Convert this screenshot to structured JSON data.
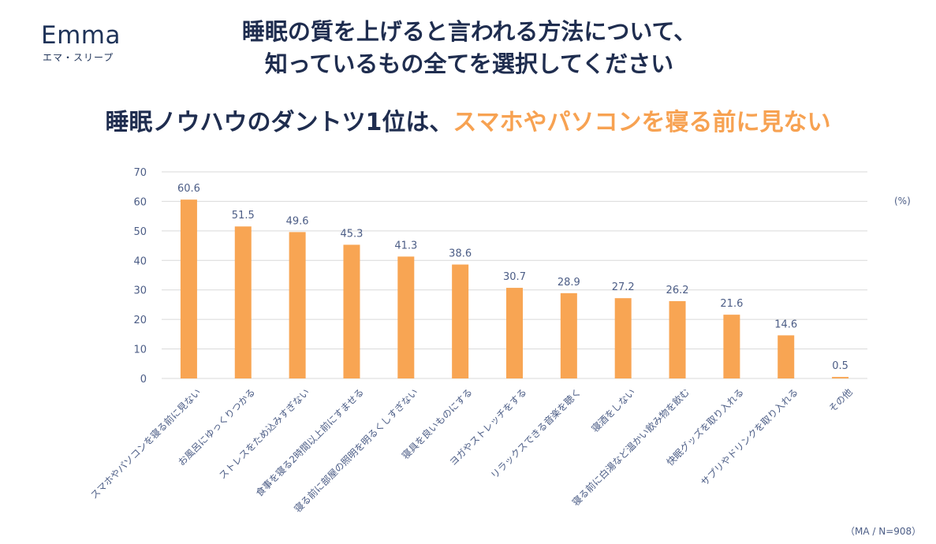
{
  "brand": {
    "name": "Emma",
    "sub": "エマ・スリープ"
  },
  "question": {
    "line1": "睡眠の質を上げると言われる方法について、",
    "line2": "知っているもの全てを選択してください"
  },
  "headline": {
    "prefix": "睡眠ノウハウのダントツ1位は、",
    "highlight": "スマホやパソコンを寝る前に見ない"
  },
  "unit_label": "(%)",
  "sample_note": "（MA / N=908）",
  "colors": {
    "bar": "#f8a553",
    "text": "#1f2d4f",
    "accent": "#f7a252",
    "axis_text": "#4c5d86",
    "grid": "#d9d9d9"
  },
  "chart_data": {
    "type": "bar",
    "title": "睡眠の質を上げると言われる方法について、知っているもの全てを選択してください",
    "xlabel": "",
    "ylabel": "(%)",
    "ylim": [
      0,
      70
    ],
    "yticks": [
      0,
      10,
      20,
      30,
      40,
      50,
      60,
      70
    ],
    "grid": true,
    "categories": [
      "スマホやパソコンを寝る前に見ない",
      "お風呂にゆっくりつかる",
      "ストレスをため込みすぎない",
      "食事を寝る2時間以上前にすませる",
      "寝る前に部屋の照明を明るくしすぎない",
      "寝具を良いものにする",
      "ヨガやストレッチをする",
      "リラックスできる音楽を聴く",
      "寝酒をしない",
      "寝る前に白湯など温かい飲み物を飲む",
      "快眠グッズを取り入れる",
      "サプリやドリンクを取り入れる",
      "その他"
    ],
    "values": [
      60.6,
      51.5,
      49.6,
      45.3,
      41.3,
      38.6,
      30.7,
      28.9,
      27.2,
      26.2,
      21.6,
      14.6,
      0.5
    ],
    "value_labels": [
      "60.6",
      "51.5",
      "49.6",
      "45.3",
      "41.3",
      "38.6",
      "30.7",
      "28.9",
      "27.2",
      "26.2",
      "21.6",
      "14.6",
      "0.5"
    ]
  }
}
